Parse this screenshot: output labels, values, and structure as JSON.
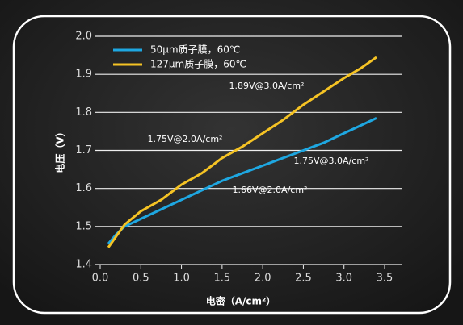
{
  "chart_data": {
    "type": "line",
    "x_label": "电密（A/cm²）",
    "y_label": "电压（V）",
    "x": [
      0.1,
      0.2,
      0.3,
      0.5,
      0.75,
      1.0,
      1.25,
      1.5,
      1.75,
      2.0,
      2.25,
      2.5,
      2.75,
      3.0,
      3.2,
      3.4
    ],
    "series": [
      {
        "name": "50μm质子膜，60℃",
        "color": "#1ea7e1",
        "values": [
          1.455,
          1.48,
          1.5,
          1.52,
          1.545,
          1.57,
          1.595,
          1.62,
          1.64,
          1.66,
          1.68,
          1.7,
          1.72,
          1.745,
          1.765,
          1.785
        ]
      },
      {
        "name": "127μm质子膜，60℃",
        "color": "#f5c324",
        "values": [
          1.445,
          1.475,
          1.505,
          1.54,
          1.57,
          1.61,
          1.64,
          1.68,
          1.71,
          1.745,
          1.78,
          1.82,
          1.855,
          1.89,
          1.915,
          1.945
        ]
      }
    ],
    "annotations": [
      "1.89V@3.0A/cm²",
      "1.75V@2.0A/cm²",
      "1.75V@3.0A/cm²",
      "1.66V@2.0A/cm²"
    ],
    "xlim": [
      0,
      3.5
    ],
    "xticks": [
      {
        "value": 0,
        "label": "0.0"
      },
      0.5,
      {
        "value": 1,
        "label": "1.0"
      },
      1.5,
      {
        "value": 2,
        "label": "2.0"
      },
      2.5,
      {
        "value": 3,
        "label": "3.0"
      },
      3.5
    ],
    "ylim": [
      1.4,
      2.0
    ],
    "yticks": [
      1.4,
      1.5,
      1.6,
      1.7,
      1.8,
      1.9,
      {
        "value": 2,
        "label": "2.0"
      }
    ],
    "grid": true,
    "legend": "upper left"
  }
}
